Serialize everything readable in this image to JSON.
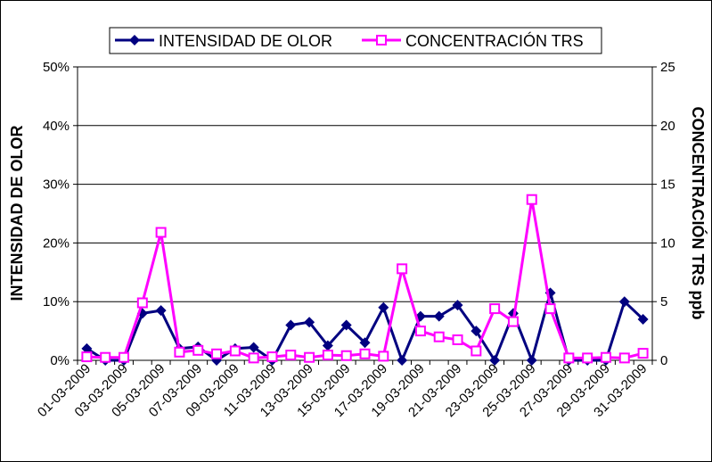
{
  "chart_data": {
    "type": "line",
    "title": "",
    "x": [
      "01-03-2009",
      "02-03-2009",
      "03-03-2009",
      "04-03-2009",
      "05-03-2009",
      "06-03-2009",
      "07-03-2009",
      "08-03-2009",
      "09-03-2009",
      "10-03-2009",
      "11-03-2009",
      "12-03-2009",
      "13-03-2009",
      "14-03-2009",
      "15-03-2009",
      "16-03-2009",
      "17-03-2009",
      "18-03-2009",
      "19-03-2009",
      "20-03-2009",
      "21-03-2009",
      "22-03-2009",
      "23-03-2009",
      "24-03-2009",
      "25-03-2009",
      "26-03-2009",
      "27-03-2009",
      "28-03-2009",
      "29-03-2009",
      "30-03-2009",
      "31-03-2009"
    ],
    "x_tick_labels": [
      "01-03-2009",
      "03-03-2009",
      "05-03-2009",
      "07-03-2009",
      "09-03-2009",
      "11-03-2009",
      "13-03-2009",
      "15-03-2009",
      "17-03-2009",
      "19-03-2009",
      "21-03-2009",
      "23-03-2009",
      "25-03-2009",
      "27-03-2009",
      "29-03-2009",
      "31-03-2009"
    ],
    "series": [
      {
        "name": "INTENSIDAD DE OLOR",
        "axis": "left",
        "color": "#000080",
        "marker": "diamond",
        "values": [
          2,
          0,
          0,
          8,
          8.5,
          2,
          2.3,
          0,
          2,
          2.2,
          0,
          6,
          6.5,
          2.5,
          6,
          3,
          9,
          0,
          7.5,
          7.5,
          9.4,
          5,
          0,
          8,
          0,
          11.5,
          0,
          0,
          0,
          10,
          7
        ]
      },
      {
        "name": "CONCENTRACIÓN TRS",
        "axis": "right",
        "color": "#ff00ff",
        "marker": "square",
        "values": [
          0.3,
          0.25,
          0.25,
          4.9,
          10.9,
          0.7,
          0.85,
          0.55,
          0.8,
          0.2,
          0.3,
          0.45,
          0.25,
          0.45,
          0.4,
          0.55,
          0.35,
          7.8,
          2.5,
          2,
          1.75,
          0.8,
          4.4,
          3.3,
          13.7,
          4.4,
          0.2,
          0.2,
          0.25,
          0.2,
          0.6
        ]
      }
    ],
    "y_left": {
      "label": "INTENSIDAD  DE OLOR",
      "lim": [
        0,
        50
      ],
      "ticks": [
        0,
        10,
        20,
        30,
        40,
        50
      ],
      "tick_labels": [
        "0%",
        "10%",
        "20%",
        "30%",
        "40%",
        "50%"
      ]
    },
    "y_right": {
      "label": "CONCENTRACIÓN  TRS ppb",
      "lim": [
        0,
        25
      ],
      "ticks": [
        0,
        5,
        10,
        15,
        20,
        25
      ],
      "tick_labels": [
        "0",
        "5",
        "10",
        "15",
        "20",
        "25"
      ]
    },
    "grid": true,
    "legend_position": "top-center"
  }
}
